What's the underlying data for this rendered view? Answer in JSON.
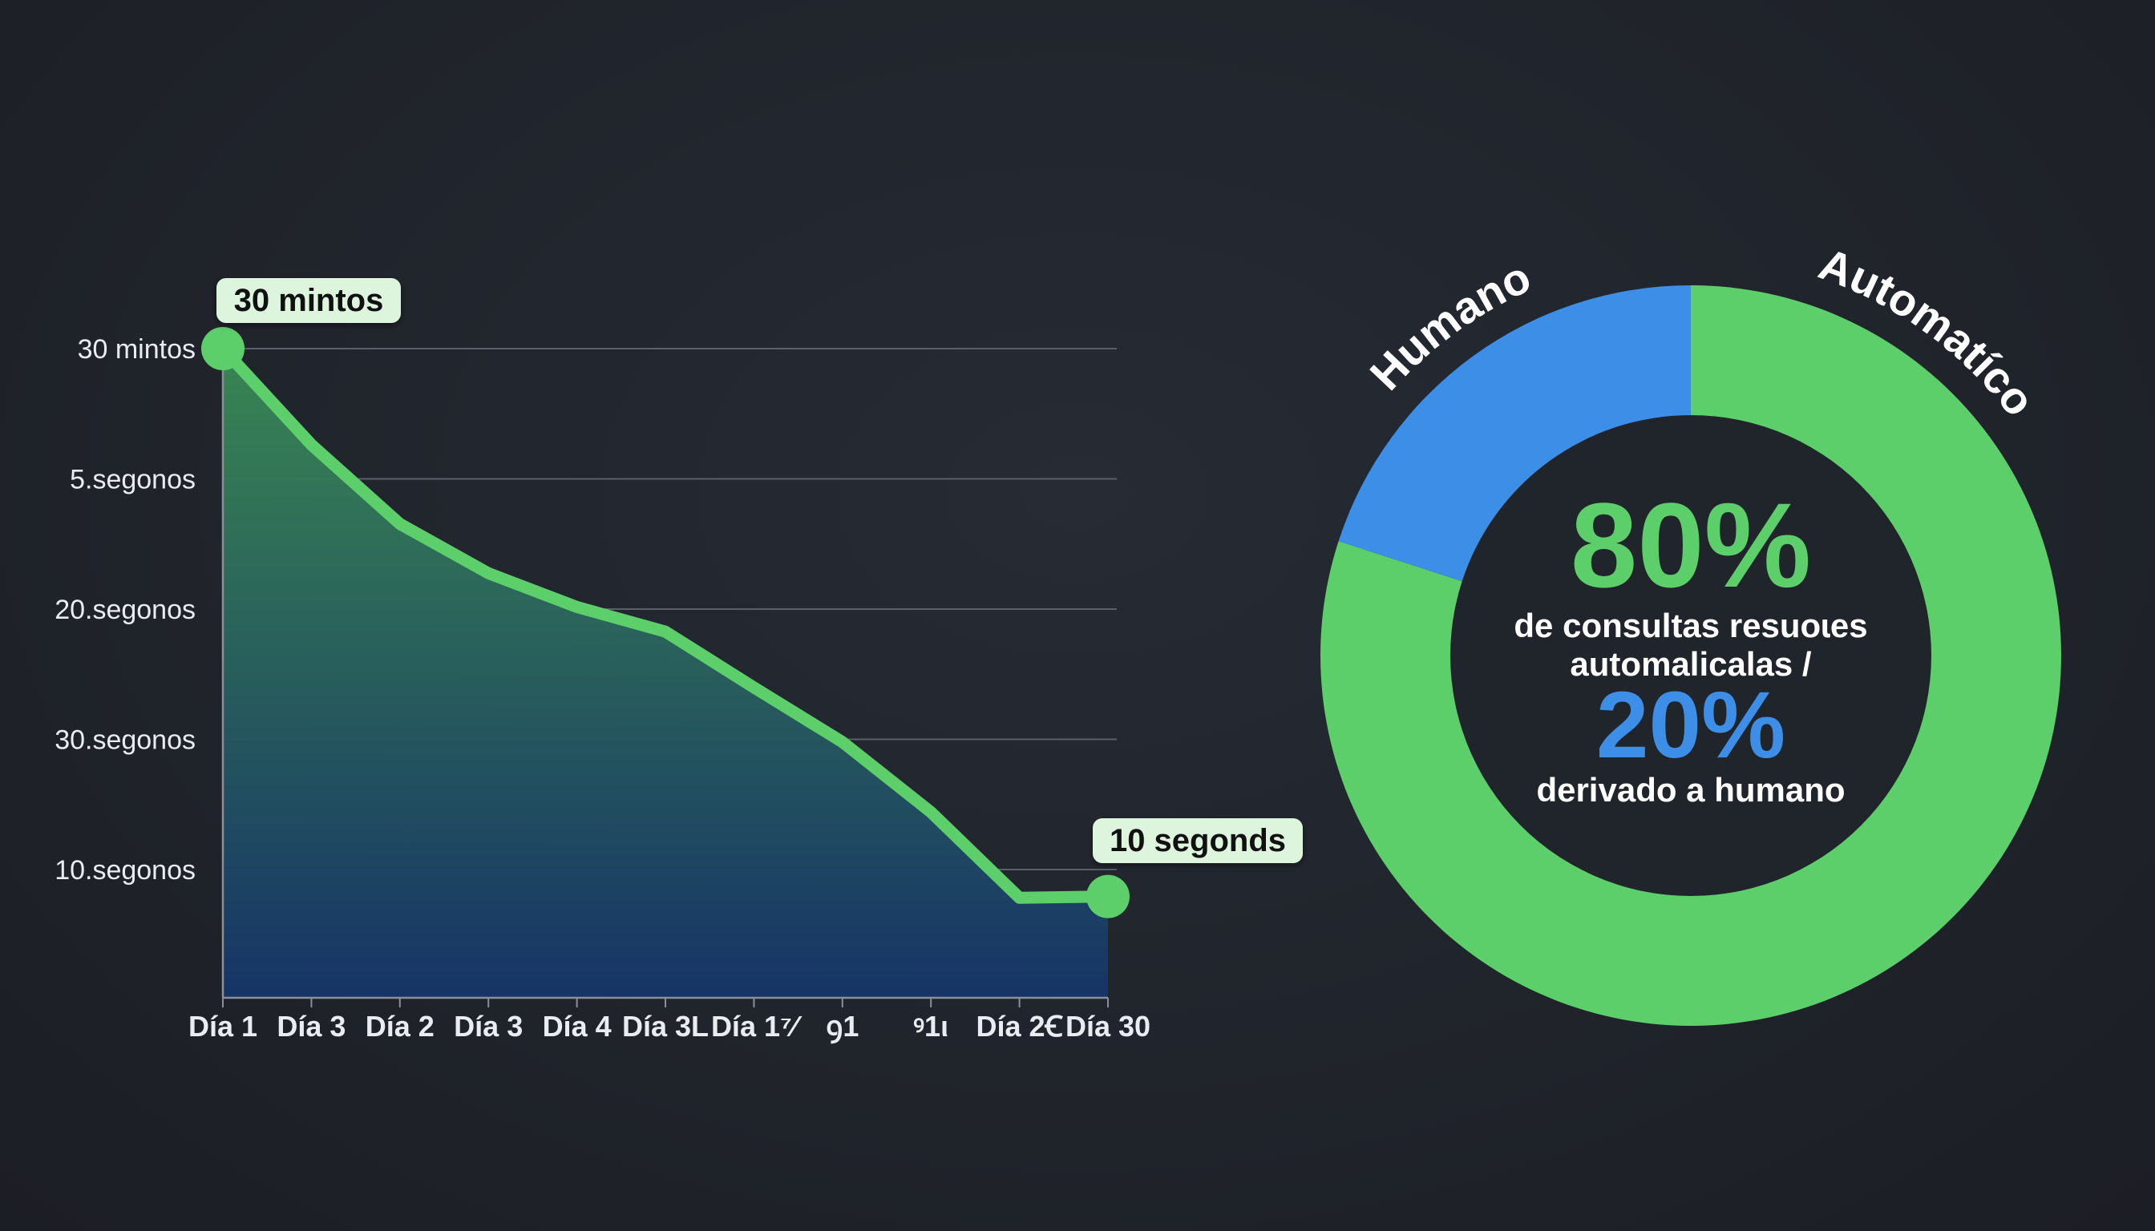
{
  "chart_data": [
    {
      "type": "area",
      "title": "",
      "xlabel": "",
      "ylabel": "",
      "categories": [
        "Día 1",
        "Día 3",
        "Día 2",
        "Día 3",
        "Día 4",
        "Día 3L",
        "Día 1⁷⁄",
        "ꝯ1",
        "ꝰ1ι",
        "Día 2Ꞓ",
        "Día 30"
      ],
      "y_tick_labels": [
        "30 mintos",
        "5.segonos",
        "20.segonos",
        "30.segonos",
        "10.segonos"
      ],
      "series": [
        {
          "values": [
            5.0,
            4.26,
            3.65,
            3.27,
            3.01,
            2.82,
            2.39,
            1.97,
            1.43,
            0.77,
            0.78
          ]
        }
      ],
      "ylim": [
        0,
        5
      ],
      "grid": true,
      "annotations": [
        {
          "text": "30 mintos",
          "point_index": 0
        },
        {
          "text": "10 segonds",
          "point_index": 10
        }
      ],
      "colors": {
        "line": "#5ccf6a",
        "fill_top": "#3a8a55",
        "fill_bottom": "#163466",
        "grid": "#5a5f68",
        "axis": "#8a8f98",
        "label": "#e9edf1",
        "callout_bg": "#ddf5dd",
        "callout_text": "#111111"
      }
    },
    {
      "type": "pie",
      "title": "",
      "labels": [
        "Automatíco",
        "Humano"
      ],
      "values": [
        80,
        20
      ],
      "center": {
        "big_value": "80%",
        "line1": "de consultas resuoɩes",
        "line2": "automalicalas /",
        "second_value": "20%",
        "line3": "derivado a humano"
      },
      "colors": {
        "automatico": "#5ccf6a",
        "humano": "#3d8ee6",
        "hole": "#20242b",
        "outer_label": "#ffffff"
      }
    }
  ]
}
